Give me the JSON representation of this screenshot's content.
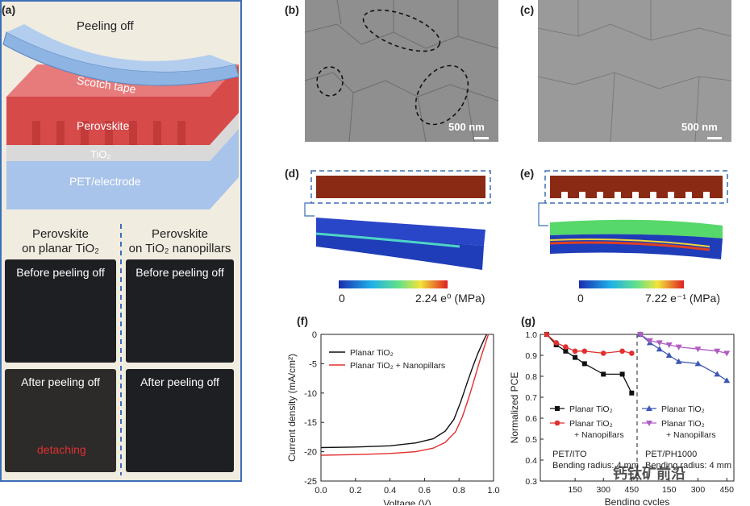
{
  "panel_a": {
    "label": "(a)",
    "peeling_title": "Peeling off",
    "layer_tape": "Scotch tape",
    "layer_perovskite": "Perovskite",
    "layer_tio2": "TiO₂",
    "layer_pet": "PET/electrode",
    "col_left_line1": "Perovskite",
    "col_left_line2": "on planar TiO₂",
    "col_right_line1": "Perovskite",
    "col_right_line2": "on TiO₂ nanopillars",
    "before_left": "Before peeling off",
    "before_right": "Before peeling off",
    "after_left": "After peeling off",
    "after_right": "After peeling off",
    "detaching": "detaching",
    "colors": {
      "tape": "#8db4e2",
      "perovskite": "#d64a4a",
      "pet": "#a9c4ea",
      "frame": "#3b6fb6"
    }
  },
  "panel_b": {
    "label": "(b)",
    "scale": "500 nm"
  },
  "panel_c": {
    "label": "(c)",
    "scale": "500 nm"
  },
  "panel_d": {
    "label": "(d)",
    "cb_min": "0",
    "cb_max": "2.24 e⁰ (MPa)"
  },
  "panel_e": {
    "label": "(e)",
    "cb_min": "0",
    "cb_max": "7.22 e⁻¹ (MPa)"
  },
  "panel_f": {
    "label": "(f)"
  },
  "panel_g": {
    "label": "(g)",
    "sub_left": "PET/ITO",
    "sub_left2": "Bending radius: 4 mm",
    "sub_right": "PET/PH1000",
    "sub_right2": "Bending radius: 4 mm"
  },
  "watermark": "钙钛矿前沿",
  "chart_data": [
    {
      "type": "line",
      "panel": "f",
      "xlabel": "Voltage (V)",
      "ylabel": "Current density (mA/cm²)",
      "xlim": [
        0.0,
        1.0
      ],
      "ylim": [
        -25,
        0
      ],
      "xticks": [
        "0.0",
        "0.2",
        "0.4",
        "0.6",
        "0.8",
        "1.0"
      ],
      "yticks": [
        "0",
        "-5",
        "-10",
        "-15",
        "-20",
        "-25"
      ],
      "legend_position": "top-left",
      "series": [
        {
          "name": "Planar TiO₂",
          "color": "#111111",
          "x": [
            0.0,
            0.2,
            0.4,
            0.55,
            0.65,
            0.72,
            0.77,
            0.81,
            0.85,
            0.88,
            0.91,
            0.94,
            0.96
          ],
          "y": [
            -19.3,
            -19.2,
            -19.0,
            -18.5,
            -17.8,
            -16.5,
            -14.5,
            -11.5,
            -8.0,
            -5.5,
            -3.2,
            -1.2,
            0
          ]
        },
        {
          "name": "Planar TiO₂ + Nanopillars",
          "color": "#e03030",
          "x": [
            0.0,
            0.2,
            0.4,
            0.55,
            0.65,
            0.72,
            0.78,
            0.82,
            0.86,
            0.89,
            0.92,
            0.95,
            0.97
          ],
          "y": [
            -20.6,
            -20.5,
            -20.3,
            -20.0,
            -19.4,
            -18.4,
            -16.6,
            -14.0,
            -10.5,
            -7.5,
            -4.5,
            -1.8,
            0
          ]
        }
      ]
    },
    {
      "type": "line",
      "panel": "g",
      "xlabel": "Bending cycles",
      "ylabel": "Normalized PCE",
      "ylim": [
        0.3,
        1.0
      ],
      "yticks": [
        "1.0",
        "0.9",
        "0.8",
        "0.7",
        "0.6",
        "0.5",
        "0.4",
        "0.3"
      ],
      "left_xticks": [
        "150",
        "300",
        "450"
      ],
      "right_xticks": [
        "150",
        "300",
        "450"
      ],
      "left_series": [
        {
          "name": "Planar TiO₂",
          "color": "#111111",
          "marker": "square",
          "x": [
            0,
            50,
            100,
            150,
            200,
            300,
            400,
            450
          ],
          "y": [
            1.0,
            0.95,
            0.92,
            0.89,
            0.86,
            0.81,
            0.81,
            0.72
          ]
        },
        {
          "name": "Planar TiO₂ + Nanopillars",
          "color": "#e03030",
          "marker": "circle",
          "x": [
            0,
            50,
            100,
            150,
            200,
            300,
            400,
            450
          ],
          "y": [
            1.0,
            0.96,
            0.94,
            0.92,
            0.92,
            0.91,
            0.92,
            0.91
          ]
        }
      ],
      "right_series": [
        {
          "name": "Planar TiO₂",
          "color": "#3f57b5",
          "marker": "triangle",
          "x": [
            0,
            50,
            100,
            150,
            200,
            300,
            400,
            450
          ],
          "y": [
            1.0,
            0.96,
            0.93,
            0.9,
            0.87,
            0.86,
            0.81,
            0.78
          ]
        },
        {
          "name": "Planar TiO₂ + Nanopillars",
          "color": "#b05cc4",
          "marker": "triangle-down",
          "x": [
            0,
            50,
            100,
            150,
            200,
            300,
            400,
            450
          ],
          "y": [
            1.0,
            0.97,
            0.96,
            0.95,
            0.94,
            0.93,
            0.92,
            0.91
          ]
        }
      ]
    }
  ]
}
